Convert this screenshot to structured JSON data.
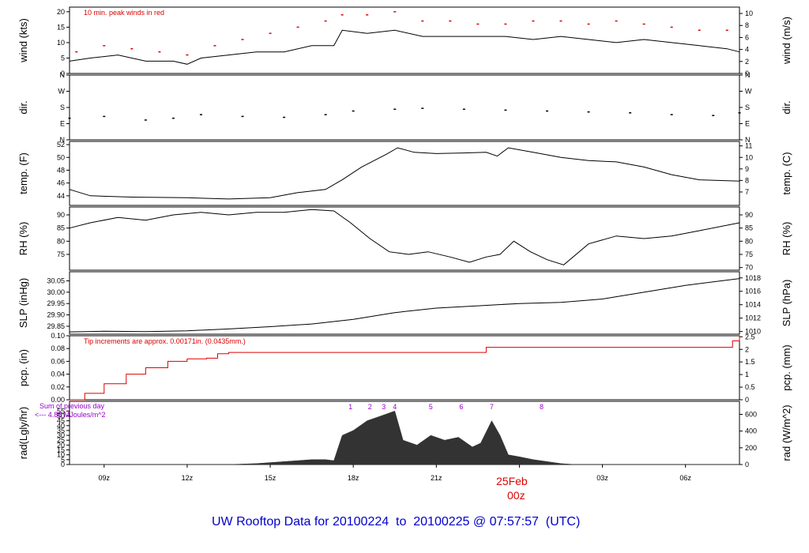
{
  "title": "UW Rooftop Data for 20100224  to  20100225 @ 07:57:57  (UTC)",
  "date_marker": {
    "date": "25Feb",
    "time": "00z"
  },
  "colors": {
    "accent": "#0000cc",
    "red": "#dd0000",
    "purple": "#9900cc",
    "line": "#000000"
  },
  "chart_data": {
    "type": "line",
    "x_axis": {
      "range_hours_utc": [
        7.75,
        31.95
      ],
      "ticks": [
        "09z",
        "12z",
        "15z",
        "18z",
        "21z",
        "00z",
        "03z",
        "06z"
      ],
      "tick_hours": [
        9,
        12,
        15,
        18,
        21,
        24,
        27,
        30
      ]
    },
    "panels": [
      {
        "id": "wind",
        "ylabel_left": "wind (kts)",
        "ylabel_right": "wind (m/s)",
        "ylim": [
          0,
          21.5
        ],
        "left_ticks": [
          "0",
          "5",
          "10",
          "15",
          "20"
        ],
        "left_tick_values": [
          0,
          5,
          10,
          15,
          20
        ],
        "right_ticks": [
          "0",
          "2",
          "4",
          "6",
          "8",
          "10"
        ],
        "right_tick_values": [
          0,
          3.89,
          7.78,
          11.66,
          15.55,
          19.44
        ],
        "annotation": "10 min. peak winds in red",
        "series": [
          {
            "style": "line",
            "color": "#000000",
            "x": [
              7.75,
              8.5,
              9.5,
              10.5,
              11.5,
              12.0,
              12.5,
              13.5,
              14.5,
              15.5,
              16.5,
              17.3,
              17.6,
              18.5,
              19.5,
              20.5,
              21.5,
              22.5,
              23.5,
              24.5,
              25.5,
              26.5,
              27.5,
              28.5,
              29.5,
              30.5,
              31.5,
              31.95
            ],
            "y": [
              4,
              5,
              6,
              4,
              4,
              3,
              5,
              6,
              7,
              7,
              9,
              9,
              14,
              13,
              14,
              12,
              12,
              12,
              12,
              11,
              12,
              11,
              10,
              11,
              10,
              9,
              8,
              7
            ]
          },
          {
            "style": "points",
            "color": "#dd0000",
            "x": [
              8.0,
              9.0,
              10.0,
              11.0,
              12.0,
              13.0,
              14.0,
              15.0,
              16.0,
              17.0,
              17.6,
              18.5,
              19.5,
              20.5,
              21.5,
              22.5,
              23.5,
              24.5,
              25.5,
              26.5,
              27.5,
              28.5,
              29.5,
              30.5,
              31.5
            ],
            "y": [
              7,
              9,
              8,
              7,
              6,
              9,
              11,
              13,
              15,
              17,
              19,
              19,
              20,
              17,
              17,
              16,
              16,
              17,
              17,
              16,
              17,
              16,
              15,
              14,
              14
            ]
          }
        ]
      },
      {
        "id": "dir",
        "ylabel_left": "dir.",
        "ylabel_right": "dir.",
        "ylim": [
          0,
          360
        ],
        "left_ticks": [
          "N",
          "E",
          "S",
          "W",
          "N"
        ],
        "left_tick_values": [
          0,
          90,
          180,
          270,
          360
        ],
        "right_ticks": [
          "N",
          "E",
          "S",
          "W",
          "N"
        ],
        "right_tick_values": [
          0,
          90,
          180,
          270,
          360
        ],
        "series": [
          {
            "style": "points",
            "color": "#000000",
            "x": [
              7.75,
              9,
              10.5,
              11.5,
              12.5,
              14,
              15.5,
              17,
              18,
              19.5,
              20.5,
              22,
              23.5,
              25,
              26.5,
              28,
              29.5,
              31,
              31.95
            ],
            "y": [
              120,
              130,
              110,
              120,
              140,
              130,
              125,
              140,
              160,
              170,
              175,
              170,
              165,
              160,
              155,
              150,
              140,
              135,
              150
            ]
          }
        ]
      },
      {
        "id": "temp",
        "ylabel_left": "temp. (F)",
        "ylabel_right": "temp. (C)",
        "ylim": [
          42.5,
          52.5
        ],
        "left_ticks": [
          "44",
          "46",
          "48",
          "50",
          "52"
        ],
        "left_tick_values": [
          44,
          46,
          48,
          50,
          52
        ],
        "right_ticks": [
          "7",
          "8",
          "9",
          "10",
          "11"
        ],
        "right_tick_values": [
          44.6,
          46.4,
          48.2,
          50.0,
          51.8
        ],
        "series": [
          {
            "style": "line",
            "color": "#000000",
            "x": [
              7.75,
              8.5,
              10,
              12,
              13.5,
              15,
              16,
              17,
              17.6,
              18.3,
              19.2,
              19.6,
              20.2,
              21,
              22,
              22.8,
              23.2,
              23.6,
              24.5,
              25.5,
              26.5,
              27.5,
              28.5,
              29.5,
              30.5,
              31.95
            ],
            "y": [
              45,
              44,
              43.8,
              43.7,
              43.5,
              43.7,
              44.5,
              45,
              46.5,
              48.5,
              50.5,
              51.5,
              50.8,
              50.6,
              50.7,
              50.8,
              50.2,
              51.5,
              50.8,
              50,
              49.5,
              49.3,
              48.5,
              47.3,
              46.5,
              46.3
            ]
          }
        ]
      },
      {
        "id": "rh",
        "ylabel_left": "RH (%)",
        "ylabel_right": "RH (%)",
        "ylim": [
          69,
          93
        ],
        "left_ticks": [
          "75",
          "80",
          "85",
          "90"
        ],
        "left_tick_values": [
          75,
          80,
          85,
          90
        ],
        "right_ticks": [
          "70",
          "75",
          "80",
          "85",
          "90"
        ],
        "right_tick_values": [
          70,
          75,
          80,
          85,
          90
        ],
        "series": [
          {
            "style": "line",
            "color": "#000000",
            "x": [
              7.75,
              8.5,
              9.5,
              10.5,
              11.5,
              12.5,
              13.5,
              14.5,
              15.5,
              16.5,
              17.3,
              17.9,
              18.6,
              19.3,
              20,
              20.7,
              21.5,
              22.2,
              22.8,
              23.3,
              23.8,
              24.4,
              25,
              25.6,
              26.5,
              27.5,
              28.5,
              29.5,
              30.5,
              31.95
            ],
            "y": [
              85,
              87,
              89,
              88,
              90,
              91,
              90,
              91,
              91,
              92,
              91.5,
              87,
              81,
              76,
              75,
              76,
              74,
              72,
              74,
              75,
              80,
              76,
              73,
              71,
              79,
              82,
              81,
              82,
              84,
              87
            ]
          }
        ]
      },
      {
        "id": "slp",
        "ylabel_left": "SLP (inHg)",
        "ylabel_right": "SLP (hPa)",
        "ylim": [
          29.815,
          30.09
        ],
        "left_ticks": [
          "29.85",
          "29.90",
          "29.95",
          "30.00",
          "30.05"
        ],
        "left_tick_values": [
          29.85,
          29.9,
          29.95,
          30.0,
          30.05
        ],
        "right_ticks": [
          "1010",
          "1012",
          "1014",
          "1016",
          "1018"
        ],
        "right_tick_values": [
          29.8267,
          29.8858,
          29.9448,
          30.0039,
          30.063
        ],
        "series": [
          {
            "style": "line",
            "color": "#000000",
            "x": [
              7.75,
              9,
              10.5,
              12,
              13.5,
              15,
              16.5,
              18,
              19.5,
              21,
              22.5,
              24,
              25.5,
              27,
              28.5,
              30,
              31.95
            ],
            "y": [
              29.825,
              29.828,
              29.826,
              29.83,
              29.838,
              29.848,
              29.86,
              29.88,
              29.91,
              29.93,
              29.94,
              29.95,
              29.955,
              29.97,
              30.0,
              30.03,
              30.06
            ]
          }
        ]
      },
      {
        "id": "pcp",
        "ylabel_left": "pcp. (in)",
        "ylabel_right": "pcp. (mm)",
        "ylim": [
          0,
          0.1
        ],
        "left_ticks": [
          "0.00",
          "0.02",
          "0.04",
          "0.06",
          "0.08",
          "0.10"
        ],
        "left_tick_values": [
          0,
          0.02,
          0.04,
          0.06,
          0.08,
          0.1
        ],
        "right_ticks": [
          "0",
          "0.5",
          "1",
          "1.5",
          "2",
          "2.5"
        ],
        "right_tick_values": [
          0,
          0.0197,
          0.0394,
          0.0591,
          0.0787,
          0.0984
        ],
        "annotation": "Tip increments are approx. 0.00171in. (0.0435mm.)",
        "series": [
          {
            "style": "step",
            "color": "#dd0000",
            "x": [
              7.75,
              8.3,
              9.0,
              9.8,
              10.5,
              11.3,
              12.0,
              12.7,
              13.1,
              13.5,
              22.5,
              22.8,
              31.5,
              31.7,
              31.95
            ],
            "y": [
              0,
              0.01,
              0.025,
              0.04,
              0.05,
              0.06,
              0.064,
              0.065,
              0.072,
              0.074,
              0.074,
              0.082,
              0.082,
              0.092,
              0.1
            ]
          }
        ]
      },
      {
        "id": "rad",
        "ylabel_left": "rad(Lgly/hr)",
        "ylabel_right": "rad (W/m^2)",
        "ylim": [
          0,
          65
        ],
        "left_ticks": [
          "0",
          "5",
          "10",
          "15",
          "20",
          "25",
          "30",
          "35",
          "40",
          "45",
          "50",
          "55"
        ],
        "left_tick_values": [
          0,
          5,
          10,
          15,
          20,
          25,
          30,
          35,
          40,
          45,
          50,
          55
        ],
        "right_ticks": [
          "0",
          "200",
          "400",
          "600"
        ],
        "right_tick_values": [
          0,
          17.2,
          34.4,
          51.6
        ],
        "annotation_lines": [
          "Sum of previous day",
          "<--- 4.88 MJoules/m^2"
        ],
        "event_labels": [
          "1",
          "2",
          "3",
          "4",
          "5",
          "6",
          "7",
          "8"
        ],
        "event_hours": [
          17.9,
          18.6,
          19.1,
          19.5,
          20.8,
          21.9,
          23.0,
          24.8
        ],
        "series": [
          {
            "style": "area",
            "color": "#333333",
            "x": [
              7.75,
              13.5,
              14.5,
              15.5,
              16.5,
              17.0,
              17.3,
              17.6,
              18.0,
              18.5,
              19.0,
              19.5,
              19.8,
              20.3,
              20.8,
              21.3,
              21.8,
              22.3,
              22.6,
              23.0,
              23.3,
              23.6,
              24.0,
              24.5,
              25.0,
              25.5,
              26.0,
              26.3,
              31.95
            ],
            "y": [
              0,
              0,
              1,
              3,
              5,
              5,
              4,
              30,
              35,
              45,
              50,
              55,
              25,
              20,
              30,
              25,
              28,
              18,
              22,
              45,
              30,
              10,
              8,
              5,
              3,
              1,
              0,
              0,
              0
            ]
          }
        ]
      }
    ]
  }
}
